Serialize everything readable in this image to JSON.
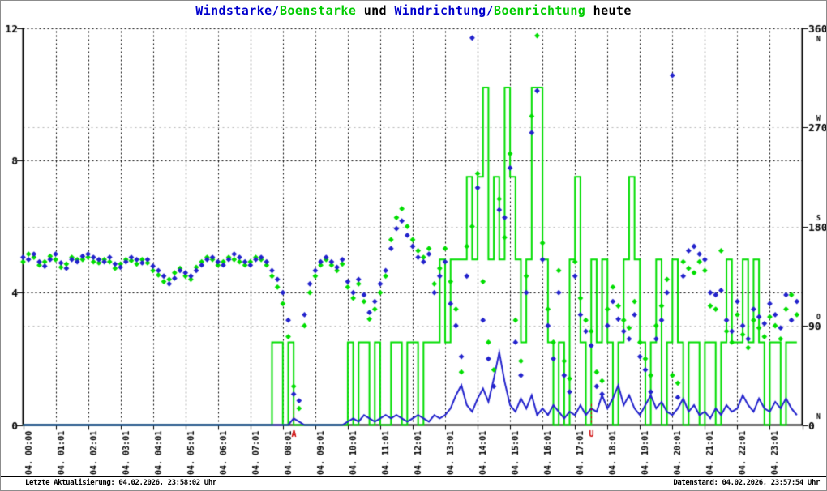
{
  "window": {
    "background": "#ffffff",
    "border_color": "#8c8c8c"
  },
  "title": {
    "segments": [
      {
        "text": "Windstarke/",
        "color": "#0000cc"
      },
      {
        "text": "Boenstarke",
        "color": "#00cc00"
      },
      {
        "text": " und ",
        "color": "#000000"
      },
      {
        "text": "Windrichtung/",
        "color": "#0000cc"
      },
      {
        "text": "Boenrichtung",
        "color": "#00cc00"
      },
      {
        "text": " heute",
        "color": "#000000"
      }
    ]
  },
  "footer": {
    "left": "Letzte Aktualisierung: 04.02.2026, 23:58:02 Uhr",
    "right": "Datenstand: 04.02.2026, 23:57:54 Uhr"
  },
  "chart_data": {
    "type": "line+scatter",
    "title": "Windstarke/Boenstarke und Windrichtung/Boenrichtung heute",
    "colors": {
      "blue": "#2222cc",
      "green": "#00dd00",
      "red": "#cc0000",
      "grid_gray": "#b4b4b4",
      "axis_black": "#000000"
    },
    "x_start": "00:00",
    "x_interval_minutes": 10,
    "x_labels": [
      "04. 00:00",
      "04. 01:01",
      "04. 02:01",
      "04. 03:01",
      "04. 04:01",
      "04. 05:01",
      "04. 06:01",
      "04. 07:01",
      "04. 08:01",
      "04. 09:01",
      "04. 10:01",
      "04. 11:01",
      "04. 12:01",
      "04. 13:01",
      "04. 14:01",
      "04. 15:01",
      "04. 16:01",
      "04. 17:01",
      "04. 18:01",
      "04. 19:01",
      "04. 20:01",
      "04. 21:01",
      "04. 22:01",
      "04. 23:01"
    ],
    "left_axis": {
      "range": [
        0,
        12
      ],
      "ticks": [
        0,
        4,
        8,
        12
      ],
      "grid_values": [
        4,
        8,
        12
      ]
    },
    "right_axis": {
      "range": [
        0,
        360
      ],
      "ticks": [
        {
          "value": 0,
          "compass": "N"
        },
        {
          "value": 90,
          "compass": "O"
        },
        {
          "value": 180,
          "compass": "S"
        },
        {
          "value": 270,
          "compass": "W"
        },
        {
          "value": 360,
          "compass": "N"
        }
      ],
      "gray_grid_values": [
        90,
        180,
        270
      ]
    },
    "sun_markers": [
      {
        "time": "08:20",
        "label": "A"
      },
      {
        "time": "17:30",
        "label": "U"
      }
    ],
    "series": [
      {
        "name": "Windstaerke",
        "type": "line",
        "axis": "left",
        "color": "#2222cc",
        "values": [
          0,
          0,
          0,
          0,
          0,
          0,
          0,
          0,
          0,
          0,
          0,
          0,
          0,
          0,
          0,
          0,
          0,
          0,
          0,
          0,
          0,
          0,
          0,
          0,
          0,
          0,
          0,
          0,
          0,
          0,
          0,
          0,
          0,
          0,
          0,
          0,
          0,
          0,
          0,
          0,
          0,
          0,
          0,
          0,
          0,
          0,
          0,
          0,
          0,
          0,
          0.2,
          0.1,
          0,
          0,
          0,
          0,
          0,
          0,
          0,
          0,
          0.1,
          0.2,
          0.1,
          0.3,
          0.2,
          0.1,
          0.2,
          0.3,
          0.2,
          0.3,
          0.2,
          0.1,
          0.2,
          0.3,
          0.2,
          0.1,
          0.3,
          0.2,
          0.3,
          0.5,
          0.9,
          1.2,
          0.6,
          0.4,
          0.8,
          1.1,
          0.7,
          1.4,
          2.2,
          1.3,
          0.6,
          0.4,
          0.8,
          0.5,
          0.9,
          0.3,
          0.5,
          0.3,
          0.6,
          0.4,
          0.2,
          0.4,
          0.3,
          0.6,
          0.3,
          0.5,
          0.4,
          0.9,
          0.5,
          0.8,
          1.2,
          0.6,
          0.9,
          0.5,
          0.3,
          0.6,
          0.9,
          0.5,
          0.7,
          0.4,
          0.3,
          0.5,
          0.8,
          0.4,
          0.6,
          0.3,
          0.4,
          0.2,
          0.5,
          0.3,
          0.6,
          0.4,
          0.5,
          0.9,
          0.6,
          0.4,
          0.8,
          0.5,
          0.4,
          0.7,
          0.5,
          0.8,
          0.5,
          0.3
        ]
      },
      {
        "name": "Boenstaerke",
        "type": "step-line",
        "axis": "left",
        "color": "#00dd00",
        "values": [
          0,
          0,
          0,
          0,
          0,
          0,
          0,
          0,
          0,
          0,
          0,
          0,
          0,
          0,
          0,
          0,
          0,
          0,
          0,
          0,
          0,
          0,
          0,
          0,
          0,
          0,
          0,
          0,
          0,
          0,
          0,
          0,
          0,
          0,
          0,
          0,
          0,
          0,
          0,
          0,
          0,
          0,
          0,
          0,
          0,
          0,
          2.5,
          2.5,
          0,
          2.5,
          0,
          0,
          0,
          0,
          0,
          0,
          0,
          0,
          0,
          0,
          2.5,
          0,
          2.5,
          2.5,
          0,
          2.5,
          0,
          0,
          2.5,
          2.5,
          0,
          2.5,
          2.5,
          0,
          2.5,
          2.5,
          2.5,
          5,
          2.5,
          5,
          5,
          5,
          7.5,
          5,
          7.5,
          10.2,
          5,
          7.5,
          5,
          10.2,
          7.5,
          5,
          2.5,
          5,
          10.2,
          10.2,
          5,
          2.5,
          0,
          2.5,
          0,
          5,
          7.5,
          2.5,
          0,
          5,
          2.5,
          5,
          2.5,
          0,
          2.5,
          5,
          7.5,
          5,
          2.5,
          0,
          2.5,
          5,
          0,
          2.5,
          5,
          2.5,
          0,
          2.5,
          2.5,
          0,
          2.5,
          2.5,
          0,
          2.5,
          5,
          2.5,
          2.5,
          5,
          2.5,
          5,
          2.5,
          0,
          2.5,
          2.5,
          0,
          2.5,
          2.5,
          2.5
        ]
      },
      {
        "name": "Windrichtung",
        "type": "scatter",
        "axis": "right",
        "color": "#2222cc",
        "values": [
          152,
          150,
          155,
          148,
          144,
          150,
          155,
          147,
          142,
          150,
          148,
          153,
          155,
          152,
          150,
          148,
          152,
          146,
          143,
          148,
          152,
          150,
          147,
          150,
          144,
          140,
          135,
          128,
          133,
          140,
          138,
          135,
          140,
          145,
          150,
          152,
          148,
          145,
          150,
          155,
          152,
          148,
          145,
          150,
          152,
          148,
          140,
          132,
          120,
          95,
          28,
          22,
          100,
          128,
          140,
          148,
          152,
          148,
          143,
          150,
          130,
          120,
          132,
          118,
          102,
          112,
          128,
          140,
          160,
          178,
          185,
          172,
          162,
          152,
          148,
          155,
          120,
          135,
          148,
          110,
          90,
          62,
          135,
          351,
          215,
          95,
          60,
          35,
          195,
          188,
          233,
          75,
          45,
          120,
          265,
          303,
          150,
          90,
          60,
          120,
          45,
          30,
          135,
          100,
          85,
          72,
          35,
          28,
          90,
          112,
          96,
          85,
          78,
          100,
          62,
          50,
          30,
          78,
          95,
          120,
          317,
          25,
          135,
          158,
          162,
          155,
          150,
          120,
          118,
          122,
          95,
          85,
          112,
          90,
          78,
          105,
          98,
          92,
          110,
          100,
          88,
          118,
          95,
          112
        ]
      },
      {
        "name": "Boenrichtung",
        "type": "scatter",
        "axis": "right",
        "color": "#00dd00",
        "values": [
          148,
          155,
          152,
          145,
          148,
          153,
          150,
          143,
          146,
          152,
          150,
          150,
          152,
          148,
          147,
          150,
          148,
          142,
          146,
          150,
          149,
          146,
          150,
          147,
          140,
          136,
          130,
          132,
          138,
          142,
          135,
          132,
          143,
          148,
          152,
          150,
          145,
          148,
          152,
          150,
          148,
          145,
          148,
          152,
          150,
          145,
          135,
          125,
          110,
          80,
          35,
          15,
          90,
          120,
          135,
          145,
          150,
          145,
          140,
          146,
          125,
          115,
          128,
          112,
          96,
          105,
          120,
          135,
          168,
          188,
          196,
          180,
          168,
          158,
          152,
          160,
          128,
          142,
          160,
          130,
          105,
          48,
          162,
          180,
          228,
          130,
          75,
          50,
          205,
          170,
          246,
          95,
          58,
          135,
          280,
          353,
          165,
          105,
          75,
          140,
          58,
          42,
          148,
          115,
          95,
          85,
          48,
          40,
          105,
          125,
          108,
          95,
          88,
          112,
          75,
          60,
          45,
          90,
          108,
          132,
          45,
          38,
          148,
          142,
          138,
          148,
          140,
          108,
          105,
          158,
          85,
          75,
          100,
          82,
          70,
          95,
          88,
          80,
          98,
          90,
          78,
          105,
          118,
          100
        ]
      }
    ]
  }
}
